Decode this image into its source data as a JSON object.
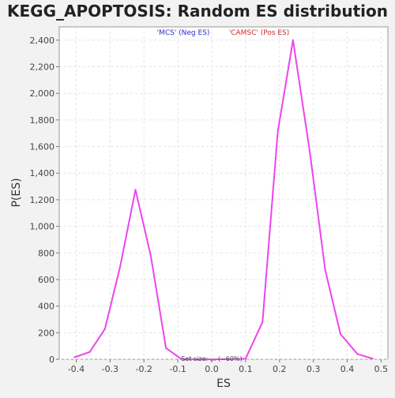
{
  "chart_data": {
    "type": "line",
    "title": "KEGG_APOPTOSIS: Random ES distribution",
    "xlabel": "ES",
    "ylabel": "P(ES)",
    "xlim": [
      -0.45,
      0.52
    ],
    "ylim": [
      0,
      2500
    ],
    "x_ticks": [
      -0.4,
      -0.3,
      -0.2,
      -0.1,
      0.0,
      0.1,
      0.2,
      0.3,
      0.4,
      0.5
    ],
    "x_tick_labels": [
      "-0.4",
      "-0.3",
      "-0.2",
      "-0.1",
      "0.0",
      "0.1",
      "0.2",
      "0.3",
      "0.4",
      "0.5"
    ],
    "y_ticks": [
      0,
      200,
      400,
      600,
      800,
      1000,
      1200,
      1400,
      1600,
      1800,
      2000,
      2200,
      2400
    ],
    "y_tick_labels": [
      "0",
      "200",
      "400",
      "600",
      "800",
      "1,000",
      "1,200",
      "1,400",
      "1,600",
      "1,800",
      "2,000",
      "2,200",
      "2,400"
    ],
    "grid": true,
    "legend_position": "top-center",
    "legend": [
      {
        "label": "'MCS' (Neg ES)",
        "color": "#2b2bcc"
      },
      {
        "label": "'CAMSC' (Pos ES)",
        "color": "#cc2b2b"
      }
    ],
    "annotation": "Set size: ...  (~60%)",
    "series": [
      {
        "color": "#ee44ee",
        "x": [
          -0.405,
          -0.36,
          -0.315,
          -0.27,
          -0.225,
          -0.18,
          -0.135,
          -0.09,
          -0.045,
          0.0,
          0.045,
          0.1,
          0.15,
          0.195,
          0.24,
          0.29,
          0.335,
          0.38,
          0.43,
          0.475
        ],
        "y": [
          15,
          55,
          230,
          700,
          1275,
          780,
          85,
          2,
          0,
          0,
          0,
          5,
          280,
          1710,
          2400,
          1550,
          670,
          190,
          40,
          5
        ]
      }
    ]
  }
}
